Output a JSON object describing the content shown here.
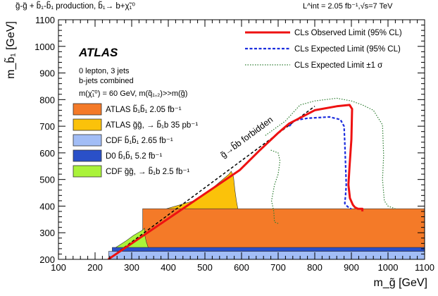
{
  "chart_data": {
    "type": "area",
    "title": "g̃-g̃ + b̃₁-b̃₁ production, b̃₁→ b+χ̃₁⁰",
    "lumi_label": "L^int = 2.05 fb⁻¹,√s=7 TeV",
    "experiment": "ATLAS",
    "selection": [
      "0 lepton, 3 jets",
      "b-jets combined"
    ],
    "assumption": "m(χ̃₁⁰) = 60 GeV, m(q̃₁,₂)>>m(g̃)",
    "xlabel": "m_g̃ [GeV]",
    "ylabel": "m_b̃₁ [GeV]",
    "xlim": [
      100,
      1100
    ],
    "ylim": [
      200,
      1100
    ],
    "x_ticks": [
      100,
      200,
      300,
      400,
      500,
      600,
      700,
      800,
      900,
      1000,
      1100
    ],
    "y_ticks": [
      200,
      300,
      400,
      500,
      600,
      700,
      800,
      900,
      1000,
      1100
    ],
    "x_tick_labels": [
      "100",
      "200",
      "300",
      "400",
      "500",
      "600",
      "700",
      "800",
      "900",
      "1000",
      "1100"
    ],
    "y_tick_labels": [
      "200",
      "300",
      "400",
      "500",
      "600",
      "700",
      "800",
      "900",
      "1000",
      "1100"
    ],
    "forbidden_label": "g̃→b̃b forbidden",
    "legend_lines": [
      {
        "label": "CLs Observed Limit (95% CL)",
        "color": "#ee1111",
        "style": "solid"
      },
      {
        "label": "CLs Expected Limit (95% CL)",
        "color": "#1a2cdd",
        "style": "dashed"
      },
      {
        "label": "CLs Expected Limit ±1 σ",
        "color": "#2e7d32",
        "style": "dotted"
      }
    ],
    "legend_boxes": [
      {
        "label": "ATLAS b̃₁b̃₁ 2.05 fb⁻¹",
        "color": "#f47a28"
      },
      {
        "label": "ATLAS g̃g̃, → b̃₁b 35 pb⁻¹",
        "color": "#fbc20a"
      },
      {
        "label": "CDF b̃₁b̃₁ 2.65 fb⁻¹",
        "color": "#a2bdf6"
      },
      {
        "label": "D0 b̃₁b̃₁ 5.2 fb⁻¹",
        "color": "#2a50c8"
      },
      {
        "label": "CDF g̃g̃, → b̃₁b 2.5 fb⁻¹",
        "color": "#aaf33a"
      }
    ],
    "regions": [
      {
        "name": "CDF b̃₁b̃₁ 2.65 fb⁻¹",
        "color": "#a2bdf6",
        "polygon": [
          [
            237,
            200
          ],
          [
            1100,
            200
          ],
          [
            1100,
            230
          ],
          [
            237,
            230
          ]
        ]
      },
      {
        "name": "D0 b̃₁b̃₁ 5.2 fb⁻¹",
        "color": "#2a50c8",
        "polygon": [
          [
            247,
            230
          ],
          [
            1100,
            230
          ],
          [
            1100,
            245
          ],
          [
            247,
            245
          ]
        ]
      },
      {
        "name": "ATLAS b̃₁b̃₁ 2.05 fb⁻¹",
        "color": "#f47a28",
        "polygon": [
          [
            330,
            245
          ],
          [
            1100,
            245
          ],
          [
            1100,
            390
          ],
          [
            330,
            390
          ]
        ]
      },
      {
        "name": "CDF g̃g̃, → b̃₁b 2.5 fb⁻¹",
        "color": "#aaf33a",
        "polygon": [
          [
            257,
            245
          ],
          [
            345,
            245
          ],
          [
            340,
            265
          ],
          [
            336,
            290
          ],
          [
            335,
            317
          ],
          [
            330,
            310
          ],
          [
            305,
            290
          ],
          [
            285,
            270
          ]
        ]
      },
      {
        "name": "ATLAS g̃g̃, → b̃₁b 35 pb⁻¹",
        "color": "#fbc20a",
        "polygon": [
          [
            395,
            390
          ],
          [
            590,
            390
          ],
          [
            586,
            420
          ],
          [
            582,
            460
          ],
          [
            578,
            510
          ],
          [
            572,
            531
          ],
          [
            565,
            519
          ],
          [
            540,
            490
          ],
          [
            505,
            450
          ],
          [
            470,
            420
          ]
        ]
      }
    ],
    "diagonal_line": {
      "x": [
        236,
        800
      ],
      "y": [
        200,
        775
      ]
    },
    "observed_limit": {
      "x": [
        236,
        595,
        650,
        700,
        730,
        800,
        860,
        895,
        902,
        900,
        895,
        892,
        896,
        904,
        910,
        918,
        930,
        930
      ],
      "y": [
        200,
        535,
        610,
        675,
        710,
        760,
        775,
        780,
        765,
        650,
        550,
        480,
        430,
        405,
        395,
        390,
        390,
        380
      ]
    },
    "expected_limit": {
      "x": [
        730,
        745,
        780,
        840,
        870,
        880,
        882,
        884,
        886,
        884,
        882,
        888,
        895,
        900
      ],
      "y": [
        700,
        722,
        730,
        735,
        725,
        700,
        640,
        560,
        480,
        440,
        410,
        400,
        392,
        390
      ]
    },
    "expected_band_up": {
      "x": [
        665,
        720,
        760,
        800,
        860,
        900,
        930,
        960,
        985,
        988,
        985,
        990,
        1000,
        1020
      ],
      "y": [
        665,
        720,
        780,
        795,
        805,
        795,
        780,
        760,
        705,
        590,
        500,
        420,
        400,
        390
      ]
    },
    "expected_band_down": {
      "x": [
        680,
        700,
        705,
        700,
        690,
        682,
        685,
        688,
        690,
        700
      ],
      "y": [
        610,
        600,
        570,
        520,
        480,
        420,
        400,
        380,
        340,
        335
      ]
    }
  }
}
